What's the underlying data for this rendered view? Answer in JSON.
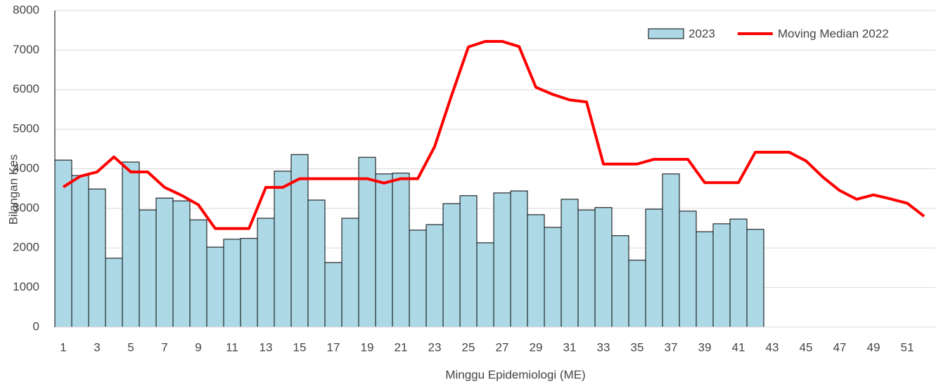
{
  "chart_data": {
    "type": "bar_line",
    "x_label": "Minggu Epidemiologi (ME)",
    "y_label": "Bilangan Kes",
    "categories": [
      "1",
      null,
      "3",
      null,
      "5",
      null,
      "7",
      null,
      "9",
      null,
      "11",
      null,
      "13",
      null,
      "15",
      null,
      "17",
      null,
      "19",
      null,
      "21",
      null,
      "23",
      null,
      "25",
      null,
      "27",
      null,
      "29",
      null,
      "31",
      null,
      "33",
      null,
      "35",
      null,
      "37",
      null,
      "39",
      null,
      "41",
      null,
      "43",
      null,
      "45",
      null,
      "47",
      null,
      "49",
      null,
      "51",
      null
    ],
    "series": [
      {
        "name": "2023",
        "type": "bar",
        "color": "#add8e6",
        "values": [
          4220,
          3830,
          3490,
          1740,
          4170,
          2960,
          3260,
          3190,
          2710,
          2020,
          2220,
          2240,
          2750,
          3940,
          4360,
          3210,
          1630,
          2750,
          4290,
          3870,
          3890,
          2450,
          2590,
          3120,
          3320,
          2130,
          3390,
          3440,
          2840,
          2520,
          3230,
          2960,
          3020,
          2310,
          1690,
          2980,
          3870,
          2930,
          2410,
          2610,
          2730,
          2470,
          null,
          null,
          null,
          null,
          null,
          null,
          null,
          null,
          null,
          null
        ]
      },
      {
        "name": "Moving Median 2022",
        "type": "line",
        "color": "#ff0000",
        "values": [
          3540,
          3810,
          3920,
          4300,
          3920,
          3920,
          3530,
          3330,
          3090,
          2490,
          2490,
          2490,
          3530,
          3530,
          3750,
          3750,
          3750,
          3750,
          3750,
          3640,
          3750,
          3750,
          4560,
          5850,
          7080,
          7220,
          7220,
          7090,
          6060,
          5880,
          5740,
          5690,
          4120,
          4120,
          4120,
          4240,
          4240,
          4240,
          3650,
          3650,
          3650,
          4420,
          4420,
          4420,
          4200,
          3790,
          3450,
          3230,
          3340,
          3240,
          3130,
          2800
        ]
      }
    ],
    "ylim": [
      0,
      8000
    ],
    "yticks": [
      0,
      1000,
      2000,
      3000,
      4000,
      5000,
      6000,
      7000,
      8000
    ],
    "grid": true,
    "legend": "top-right"
  }
}
